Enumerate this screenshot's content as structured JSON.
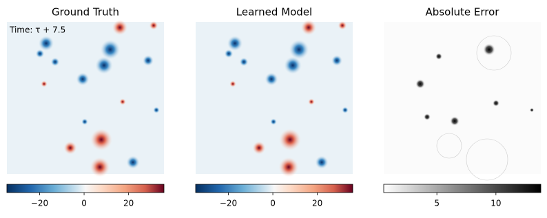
{
  "chart_data": [
    {
      "type": "field",
      "title": "Ground Truth",
      "annotation": "Time: τ + 7.5",
      "colormap": "RdBu_r",
      "clim": [
        -34.7,
        35.9
      ],
      "cticks": [
        {
          "value": -20,
          "label": "−20"
        },
        0,
        20
      ]
    },
    {
      "type": "field",
      "title": "Learned Model",
      "colormap": "RdBu_r",
      "clim": [
        -34.7,
        35.9
      ],
      "cticks": [
        {
          "value": -20,
          "label": "−20"
        },
        0,
        20
      ]
    },
    {
      "type": "field",
      "title": "Absolute Error",
      "colormap": "Greys",
      "clim": [
        0.5,
        13.8
      ],
      "cticks": [
        5,
        10
      ]
    }
  ]
}
